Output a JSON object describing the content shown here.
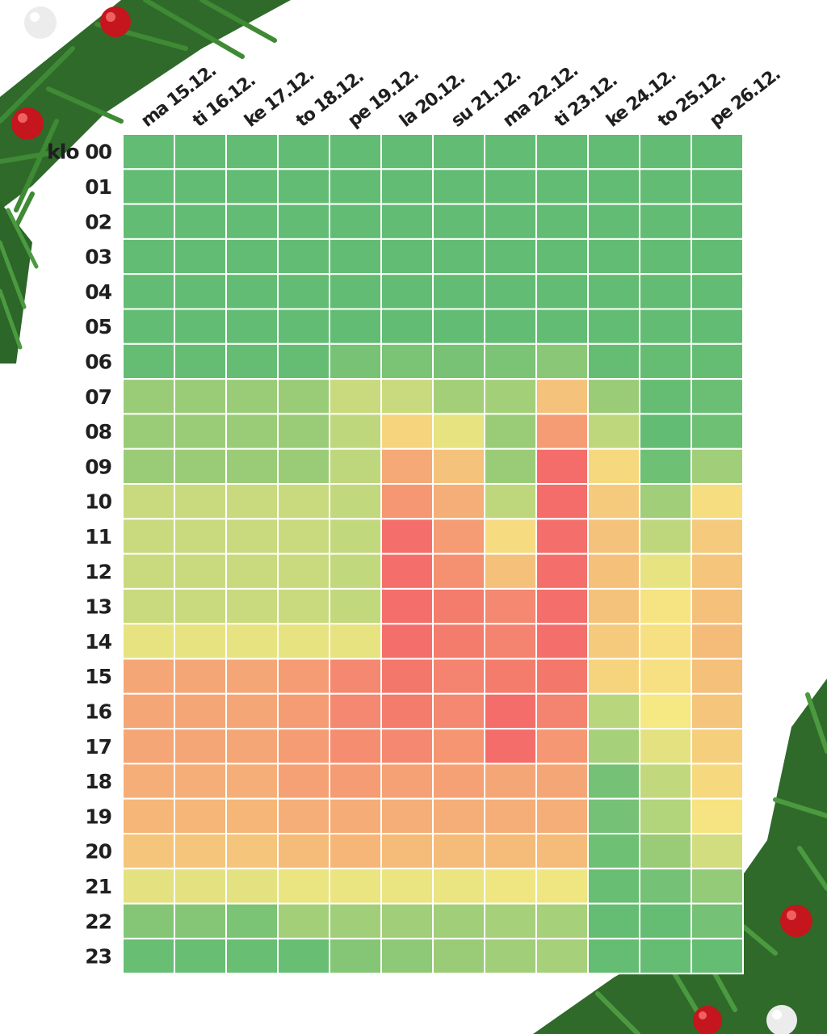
{
  "chart_data": {
    "type": "heatmap",
    "title": "",
    "hour_prefix": "klo",
    "x_labels": [
      "ma 15.12.",
      "ti 16.12.",
      "ke 17.12.",
      "to 18.12.",
      "pe 19.12.",
      "la 20.12.",
      "su 21.12.",
      "ma 22.12.",
      "ti 23.12.",
      "ke 24.12.",
      "to 25.12.",
      "pe 26.12."
    ],
    "y_labels": [
      "00",
      "01",
      "02",
      "03",
      "04",
      "05",
      "06",
      "07",
      "08",
      "09",
      "10",
      "11",
      "12",
      "13",
      "14",
      "15",
      "16",
      "17",
      "18",
      "19",
      "20",
      "21",
      "22",
      "23"
    ],
    "scale": {
      "min": 0,
      "max": 10,
      "low_color": "#5cba72",
      "mid_color": "#f6e882",
      "high_color": "#f46a6a"
    },
    "values": [
      [
        0.2,
        0.2,
        0.2,
        0.2,
        0.2,
        0.2,
        0.2,
        0.2,
        0.2,
        0.2,
        0.2,
        0.2
      ],
      [
        0.2,
        0.2,
        0.2,
        0.2,
        0.2,
        0.2,
        0.2,
        0.2,
        0.2,
        0.2,
        0.2,
        0.2
      ],
      [
        0.2,
        0.2,
        0.2,
        0.2,
        0.2,
        0.2,
        0.2,
        0.2,
        0.2,
        0.2,
        0.2,
        0.2
      ],
      [
        0.2,
        0.2,
        0.2,
        0.2,
        0.2,
        0.2,
        0.2,
        0.2,
        0.2,
        0.2,
        0.2,
        0.2
      ],
      [
        0.2,
        0.2,
        0.2,
        0.2,
        0.2,
        0.2,
        0.2,
        0.2,
        0.2,
        0.2,
        0.2,
        0.2
      ],
      [
        0.2,
        0.2,
        0.2,
        0.2,
        0.2,
        0.2,
        0.2,
        0.2,
        0.2,
        0.2,
        0.2,
        0.2
      ],
      [
        0.3,
        0.3,
        0.3,
        0.3,
        0.9,
        1.0,
        0.9,
        1.0,
        1.5,
        0.3,
        0.3,
        0.3
      ],
      [
        2.0,
        2.0,
        2.0,
        2.0,
        3.5,
        3.5,
        2.3,
        2.3,
        6.5,
        2.0,
        0.3,
        0.5
      ],
      [
        2.0,
        2.0,
        2.0,
        2.0,
        3.2,
        5.8,
        4.5,
        2.0,
        8.0,
        3.2,
        0.2,
        0.6
      ],
      [
        2.0,
        2.0,
        2.0,
        2.0,
        3.2,
        7.5,
        6.5,
        2.0,
        9.9,
        5.6,
        0.6,
        2.2
      ],
      [
        3.5,
        3.5,
        3.5,
        3.5,
        3.3,
        8.2,
        7.3,
        3.2,
        9.9,
        6.2,
        2.2,
        5.4
      ],
      [
        3.5,
        3.5,
        3.5,
        3.5,
        3.3,
        9.8,
        8.0,
        5.5,
        9.8,
        6.5,
        3.2,
        6.2
      ],
      [
        3.5,
        3.5,
        3.5,
        3.5,
        3.3,
        9.8,
        8.5,
        6.6,
        9.8,
        6.6,
        4.5,
        6.4
      ],
      [
        3.5,
        3.5,
        3.5,
        3.5,
        3.3,
        9.8,
        9.3,
        8.8,
        9.8,
        6.5,
        5.2,
        6.6
      ],
      [
        4.5,
        4.5,
        4.5,
        4.5,
        4.5,
        9.8,
        9.3,
        9.0,
        9.8,
        6.2,
        5.3,
        6.8
      ],
      [
        7.6,
        7.6,
        7.6,
        8.0,
        8.8,
        9.5,
        9.0,
        9.3,
        9.5,
        5.8,
        5.3,
        6.6
      ],
      [
        7.6,
        7.6,
        7.6,
        8.0,
        8.8,
        9.3,
        8.8,
        9.9,
        9.0,
        3.0,
        5.0,
        6.4
      ],
      [
        7.6,
        7.6,
        7.6,
        8.0,
        8.6,
        8.8,
        8.3,
        9.9,
        8.2,
        2.4,
        4.4,
        6.0
      ],
      [
        7.3,
        7.3,
        7.3,
        7.8,
        8.0,
        7.8,
        7.8,
        7.6,
        7.6,
        0.8,
        3.3,
        5.6
      ],
      [
        7.0,
        7.0,
        7.0,
        7.3,
        7.4,
        7.3,
        7.3,
        7.3,
        7.3,
        0.8,
        2.8,
        5.2
      ],
      [
        6.4,
        6.4,
        6.4,
        6.8,
        7.0,
        6.8,
        6.8,
        6.8,
        6.8,
        0.6,
        2.0,
        3.8
      ],
      [
        4.4,
        4.4,
        4.4,
        4.6,
        4.6,
        4.6,
        4.6,
        4.8,
        4.8,
        0.4,
        0.8,
        1.8
      ],
      [
        1.3,
        1.3,
        1.0,
        2.3,
        2.2,
        2.2,
        2.2,
        2.4,
        2.4,
        0.3,
        0.3,
        0.8
      ],
      [
        0.4,
        0.4,
        0.4,
        0.4,
        1.3,
        1.6,
        2.0,
        2.2,
        2.4,
        0.3,
        0.3,
        0.3
      ]
    ]
  }
}
